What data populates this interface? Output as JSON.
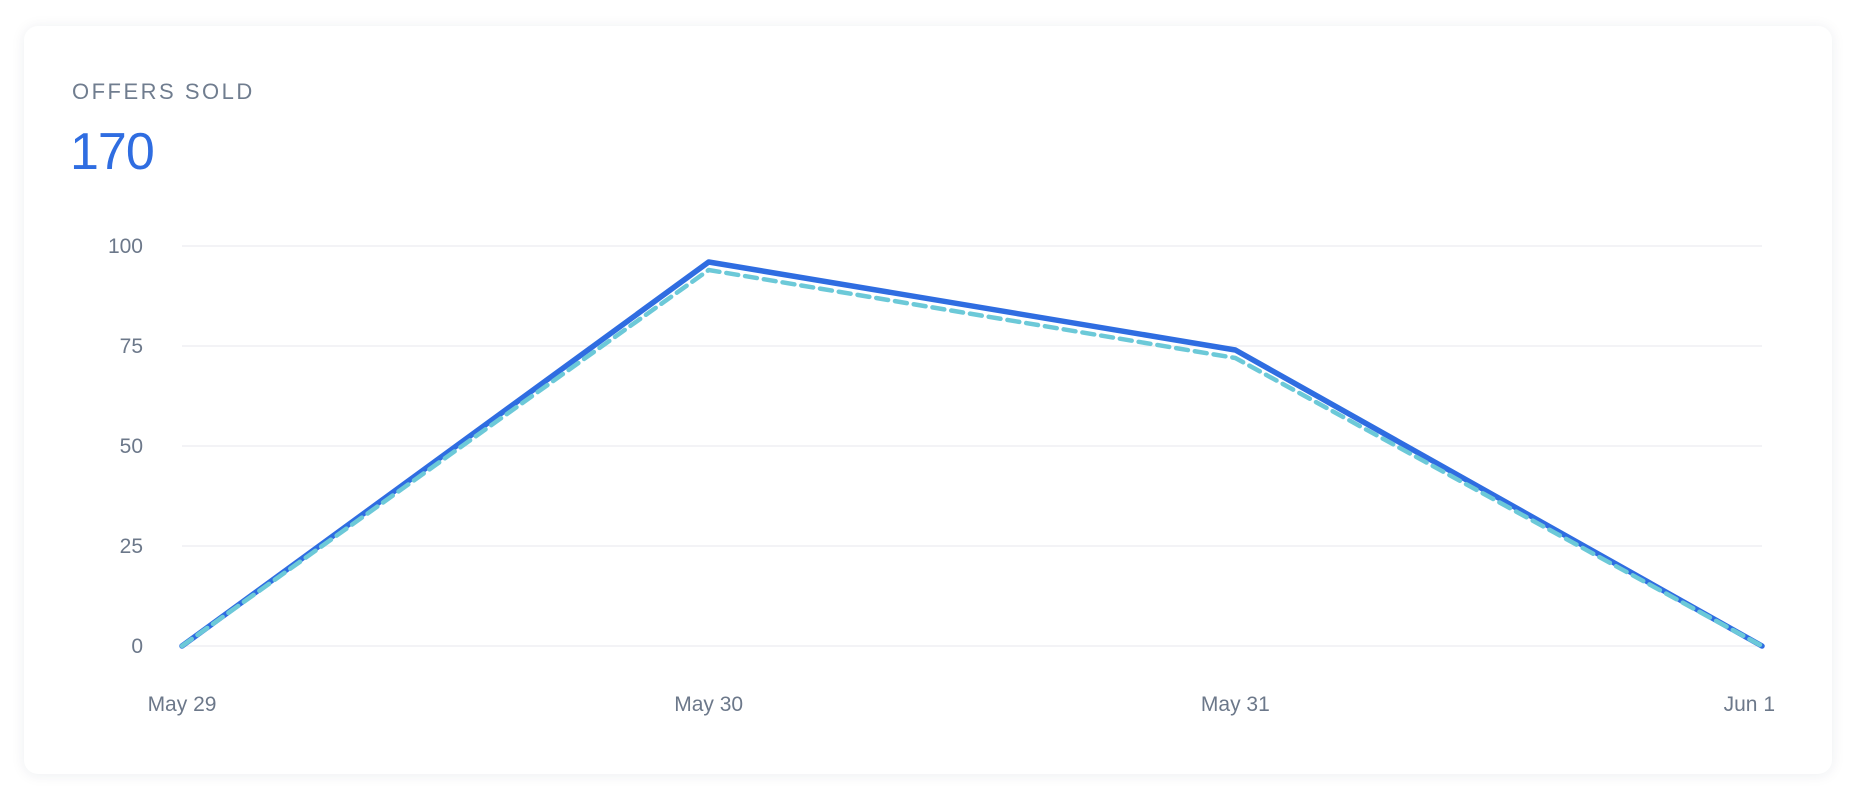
{
  "card": {
    "title": "OFFERS SOLD",
    "value": "170"
  },
  "colors": {
    "primary_line": "#2f6de1",
    "secondary_line": "#6cc9d8",
    "grid": "#ececf0",
    "tick_text": "#6c788a",
    "value_text": "#2f6de1"
  },
  "chart_data": {
    "type": "line",
    "categories": [
      "May 29",
      "May 30",
      "May 31",
      "Jun 1"
    ],
    "y_ticks": [
      0,
      25,
      50,
      75,
      100
    ],
    "ylim": [
      0,
      100
    ],
    "grid": true,
    "legend": "none",
    "series": [
      {
        "style": "solid",
        "color": "#2f6de1",
        "values": [
          0,
          96,
          74,
          0
        ]
      },
      {
        "style": "dashed",
        "color": "#6cc9d8",
        "values": [
          0,
          94,
          72,
          0
        ]
      }
    ]
  }
}
